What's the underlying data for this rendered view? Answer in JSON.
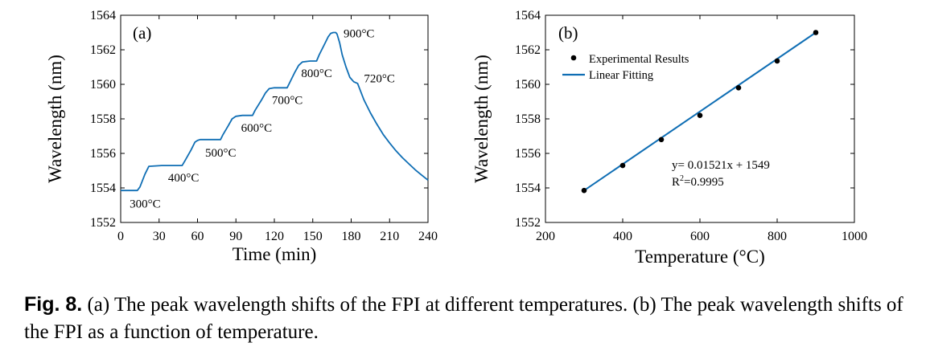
{
  "caption": {
    "label": "Fig. 8.",
    "text": " (a) The peak wavelength shifts of the FPI at different temperatures. (b) The peak wavelength shifts of the FPI as a function of temperature."
  },
  "chart_data": [
    {
      "type": "line",
      "panel_label": "(a)",
      "xlabel": "Time (min)",
      "ylabel": "Wavelength (nm)",
      "xlim": [
        0,
        240
      ],
      "ylim": [
        1552,
        1564
      ],
      "xticks": [
        0,
        30,
        60,
        90,
        120,
        150,
        180,
        210,
        240
      ],
      "yticks": [
        1552,
        1554,
        1556,
        1558,
        1560,
        1562,
        1564
      ],
      "color": "#0f6eb4",
      "series": [
        {
          "x": [
            0,
            13,
            15,
            19,
            22,
            32,
            40,
            48,
            50,
            55,
            58,
            60,
            62,
            70,
            78,
            80,
            84,
            87,
            90,
            95,
            103,
            105,
            110,
            113,
            116,
            120,
            130,
            132,
            136,
            139,
            142,
            148,
            153,
            155,
            159,
            162,
            164,
            166,
            168,
            169,
            171,
            173,
            176,
            179,
            182,
            185,
            190,
            195,
            200,
            205,
            210,
            215,
            220,
            225,
            230,
            235,
            240
          ],
          "y": [
            1553.85,
            1553.85,
            1554.05,
            1554.8,
            1555.25,
            1555.3,
            1555.3,
            1555.3,
            1555.55,
            1556.2,
            1556.65,
            1556.75,
            1556.8,
            1556.8,
            1556.8,
            1557.1,
            1557.6,
            1558.0,
            1558.15,
            1558.2,
            1558.2,
            1558.5,
            1559.1,
            1559.5,
            1559.75,
            1559.8,
            1559.8,
            1560.1,
            1560.7,
            1561.1,
            1561.3,
            1561.35,
            1561.35,
            1561.7,
            1562.3,
            1562.75,
            1562.95,
            1563.0,
            1563.0,
            1562.9,
            1562.4,
            1561.7,
            1561.0,
            1560.4,
            1560.15,
            1560.05,
            1559.1,
            1558.35,
            1557.7,
            1557.1,
            1556.6,
            1556.15,
            1555.75,
            1555.4,
            1555.05,
            1554.75,
            1554.45
          ]
        }
      ],
      "annotations": [
        {
          "text": "300°C",
          "x": 7,
          "y": 1553.1
        },
        {
          "text": "400°C",
          "x": 37,
          "y": 1554.6
        },
        {
          "text": "500°C",
          "x": 66,
          "y": 1556.05
        },
        {
          "text": "600°C",
          "x": 94,
          "y": 1557.5
        },
        {
          "text": "700°C",
          "x": 118,
          "y": 1559.1
        },
        {
          "text": "800°C",
          "x": 141,
          "y": 1560.65
        },
        {
          "text": "900°C",
          "x": 174,
          "y": 1562.95
        },
        {
          "text": "720°C",
          "x": 190,
          "y": 1560.35
        }
      ]
    },
    {
      "type": "scatter",
      "panel_label": "(b)",
      "xlabel": "Temperature (°C)",
      "ylabel": "Wavelength (nm)",
      "xlim": [
        200,
        1000
      ],
      "ylim": [
        1552,
        1564
      ],
      "xticks": [
        200,
        400,
        600,
        800,
        1000
      ],
      "yticks": [
        1552,
        1554,
        1556,
        1558,
        1560,
        1562,
        1564
      ],
      "color": "#0f6eb4",
      "legend_position": "top-left",
      "series": [
        {
          "name": "Experimental Results",
          "x": [
            300,
            400,
            500,
            600,
            700,
            800,
            900
          ],
          "y": [
            1553.85,
            1555.3,
            1556.8,
            1558.2,
            1559.8,
            1561.35,
            1563.0
          ]
        },
        {
          "name": "Linear Fitting",
          "x": [
            300,
            900
          ],
          "y": [
            1553.85,
            1563.0
          ]
        }
      ],
      "equation": "y= 0.01521x + 1549",
      "r2_prefix": "R",
      "r2_sup": "2",
      "r2_suffix": "=0.9995"
    }
  ]
}
